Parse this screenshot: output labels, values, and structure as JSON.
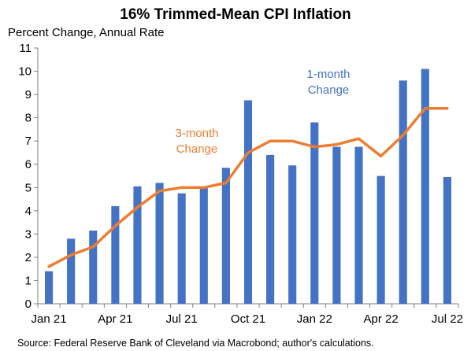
{
  "chart_data": {
    "type": "bar",
    "title": "16% Trimmed-Mean CPI Inflation",
    "subtitle": "Percent Change, Annual Rate",
    "source": "Source: Federal Reserve Bank of Cleveland via Macrobond; author's calculations.",
    "ylim": [
      0,
      11
    ],
    "yticks": [
      0,
      1,
      2,
      3,
      4,
      5,
      6,
      7,
      8,
      9,
      10,
      11
    ],
    "grid": false,
    "categories": [
      "Jan 21",
      "Feb 21",
      "Mar 21",
      "Apr 21",
      "May 21",
      "Jun 21",
      "Jul 21",
      "Aug 21",
      "Sep 21",
      "Oct 21",
      "Nov 21",
      "Dec 21",
      "Jan 22",
      "Feb 22",
      "Mar 22",
      "Apr 22",
      "May 22",
      "Jun 22",
      "Jul 22"
    ],
    "xtick_labels": [
      {
        "index": 0,
        "label": "Jan 21"
      },
      {
        "index": 3,
        "label": "Apr 21"
      },
      {
        "index": 6,
        "label": "Jul 21"
      },
      {
        "index": 9,
        "label": "Oct 21"
      },
      {
        "index": 12,
        "label": "Jan 22"
      },
      {
        "index": 15,
        "label": "Apr 22"
      },
      {
        "index": 18,
        "label": "Jul 22"
      }
    ],
    "series": [
      {
        "name": "1-month Change",
        "type": "bar",
        "color": "#4472c4",
        "label_lines": [
          "1-month",
          "Change"
        ],
        "values": [
          1.4,
          2.8,
          3.15,
          4.2,
          5.05,
          5.2,
          4.75,
          5.0,
          5.85,
          8.75,
          6.4,
          5.95,
          7.8,
          6.75,
          6.75,
          5.5,
          9.6,
          10.1,
          5.45
        ]
      },
      {
        "name": "3-month Change",
        "type": "line",
        "color": "#ed7d31",
        "label_lines": [
          "3-month",
          "Change"
        ],
        "values": [
          1.6,
          2.1,
          2.45,
          3.35,
          4.15,
          4.85,
          5.0,
          5.0,
          5.2,
          6.5,
          7.0,
          7.0,
          6.75,
          6.85,
          7.1,
          6.35,
          7.25,
          8.4,
          8.4
        ]
      }
    ]
  }
}
